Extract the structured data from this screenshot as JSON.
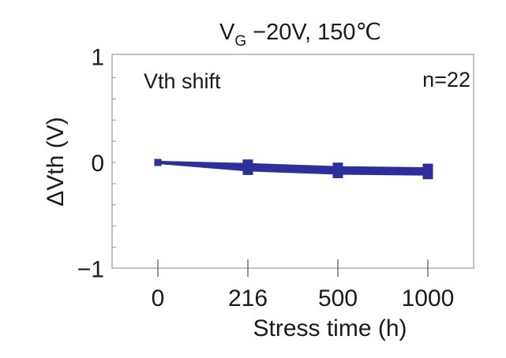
{
  "chart_data": {
    "type": "line",
    "title": "V",
    "title_subscript": "G",
    "title_rest": " −20V, 150℃",
    "annotation_left": "Vth shift",
    "annotation_right": "n=22",
    "xlabel": "Stress time (h)",
    "ylabel": "ΔVth (V)",
    "categories": [
      "0",
      "216",
      "500",
      "1000"
    ],
    "ylim": [
      -1,
      1
    ],
    "yticks": [
      {
        "value": 1,
        "label": "1"
      },
      {
        "value": 0,
        "label": "0"
      },
      {
        "value": -1,
        "label": "−1"
      }
    ],
    "minor_tick_step": 0.2,
    "grid": false,
    "marker": "square",
    "color": "#2f2f9c",
    "series": [
      {
        "values": [
          0,
          -0.02,
          -0.05,
          -0.06
        ]
      },
      {
        "values": [
          0,
          -0.03,
          -0.06,
          -0.07
        ]
      },
      {
        "values": [
          0,
          -0.04,
          -0.07,
          -0.08
        ]
      },
      {
        "values": [
          0,
          -0.05,
          -0.08,
          -0.09
        ]
      },
      {
        "values": [
          0,
          -0.06,
          -0.09,
          -0.1
        ]
      },
      {
        "values": [
          0,
          -0.07,
          -0.1,
          -0.11
        ]
      }
    ]
  }
}
